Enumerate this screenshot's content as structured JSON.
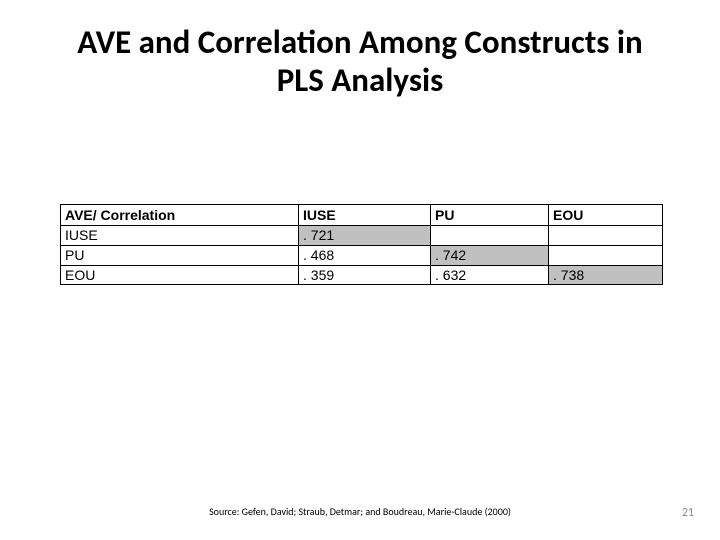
{
  "title": "AVE and Correlation Among Constructs in PLS Analysis",
  "table": {
    "header_label": "AVE/ Correlation",
    "columns": [
      "IUSE",
      "PU",
      "EOU"
    ],
    "rows": [
      {
        "label": "IUSE",
        "cells": [
          ". 721",
          "",
          ""
        ],
        "shaded": [
          true,
          false,
          false
        ]
      },
      {
        "label": "PU",
        "cells": [
          ". 468",
          ". 742",
          ""
        ],
        "shaded": [
          false,
          true,
          false
        ]
      },
      {
        "label": "EOU",
        "cells": [
          ". 359",
          ". 632",
          ". 738"
        ],
        "shaded": [
          false,
          false,
          true
        ]
      }
    ],
    "border_color": "#000000",
    "shade_color": "#c0c0c0",
    "background_color": "#ffffff",
    "header_fontsize": 14,
    "cell_fontsize": 14,
    "font_family": "Arial"
  },
  "source": "Source: Gefen, David; Straub, Detmar; and Boudreau, Marie-Claude (2000)",
  "page_number": "21"
}
